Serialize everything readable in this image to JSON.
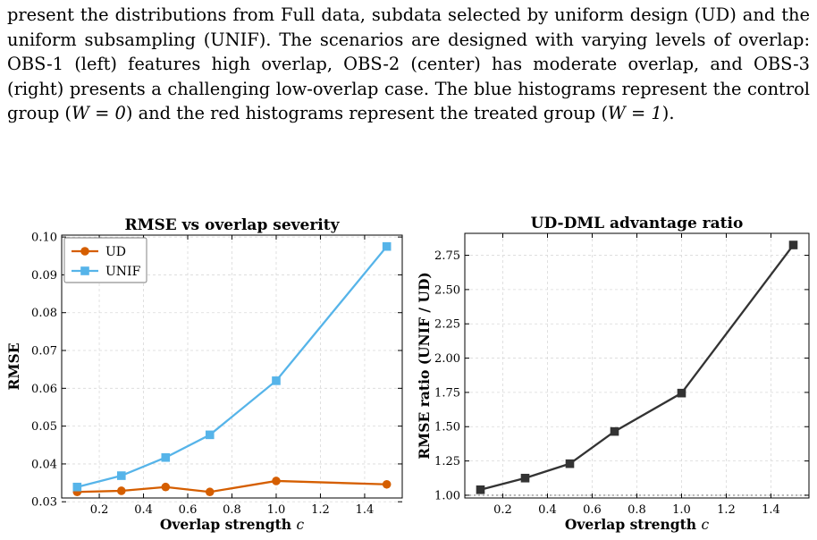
{
  "caption": {
    "part1": "present the distributions from Full data, subdata selected by uniform design (UD) and the uniform subsampling (UNIF). The scenarios are designed with varying levels of overlap: OBS-1 (left) features high overlap, OBS-2 (center) has moderate overlap, and OBS-3 (right) presents a challenging low-overlap case. The blue histograms represent the control group (",
    "math1": "W = 0",
    "part2": ") and the red histograms represent the treated group (",
    "math2": "W = 1",
    "part3": ")."
  },
  "chart_data": [
    {
      "type": "line",
      "title": "RMSE vs overlap severity",
      "xlabel": "Overlap strength c",
      "ylabel": "RMSE",
      "xlim": [
        0.03,
        1.57
      ],
      "ylim": [
        0.031,
        0.1005
      ],
      "xticks": [
        0.2,
        0.4,
        0.6,
        0.8,
        1.0,
        1.2,
        1.4
      ],
      "xtick_labels": [
        "0.2",
        "0.4",
        "0.6",
        "0.8",
        "1.0",
        "1.2",
        "1.4"
      ],
      "yticks": [
        0.03,
        0.04,
        0.05,
        0.06,
        0.07,
        0.08,
        0.09,
        0.1
      ],
      "ytick_labels": [
        "0.03",
        "0.04",
        "0.05",
        "0.06",
        "0.07",
        "0.08",
        "0.09",
        "0.10"
      ],
      "grid": true,
      "legend_position": "top-left",
      "x": [
        0.1,
        0.3,
        0.5,
        0.7,
        1.0,
        1.5
      ],
      "series": [
        {
          "name": "UD",
          "color": "#d55e00",
          "marker": "circle",
          "values": [
            0.0326,
            0.0329,
            0.0339,
            0.0326,
            0.0355,
            0.0346
          ]
        },
        {
          "name": "UNIF",
          "color": "#56b4e9",
          "marker": "square",
          "values": [
            0.0339,
            0.0369,
            0.0417,
            0.0477,
            0.062,
            0.0975
          ]
        }
      ]
    },
    {
      "type": "line",
      "title": "UD-DML advantage ratio",
      "xlabel": "Overlap strength c",
      "ylabel": "RMSE ratio (UNIF / UD)",
      "xlim": [
        0.03,
        1.57
      ],
      "ylim": [
        0.98,
        2.91
      ],
      "xticks": [
        0.2,
        0.4,
        0.6,
        0.8,
        1.0,
        1.2,
        1.4
      ],
      "xtick_labels": [
        "0.2",
        "0.4",
        "0.6",
        "0.8",
        "1.0",
        "1.2",
        "1.4"
      ],
      "yticks": [
        1.0,
        1.25,
        1.5,
        1.75,
        2.0,
        2.25,
        2.5,
        2.75
      ],
      "ytick_labels": [
        "1.00",
        "1.25",
        "1.50",
        "1.75",
        "2.00",
        "2.25",
        "2.50",
        "2.75"
      ],
      "grid": true,
      "reference_line": 1.0,
      "x": [
        0.1,
        0.3,
        0.5,
        0.7,
        1.0,
        1.5
      ],
      "series": [
        {
          "color": "#333333",
          "marker": "square",
          "values": [
            1.04,
            1.125,
            1.23,
            1.465,
            1.745,
            2.825
          ]
        }
      ]
    }
  ]
}
